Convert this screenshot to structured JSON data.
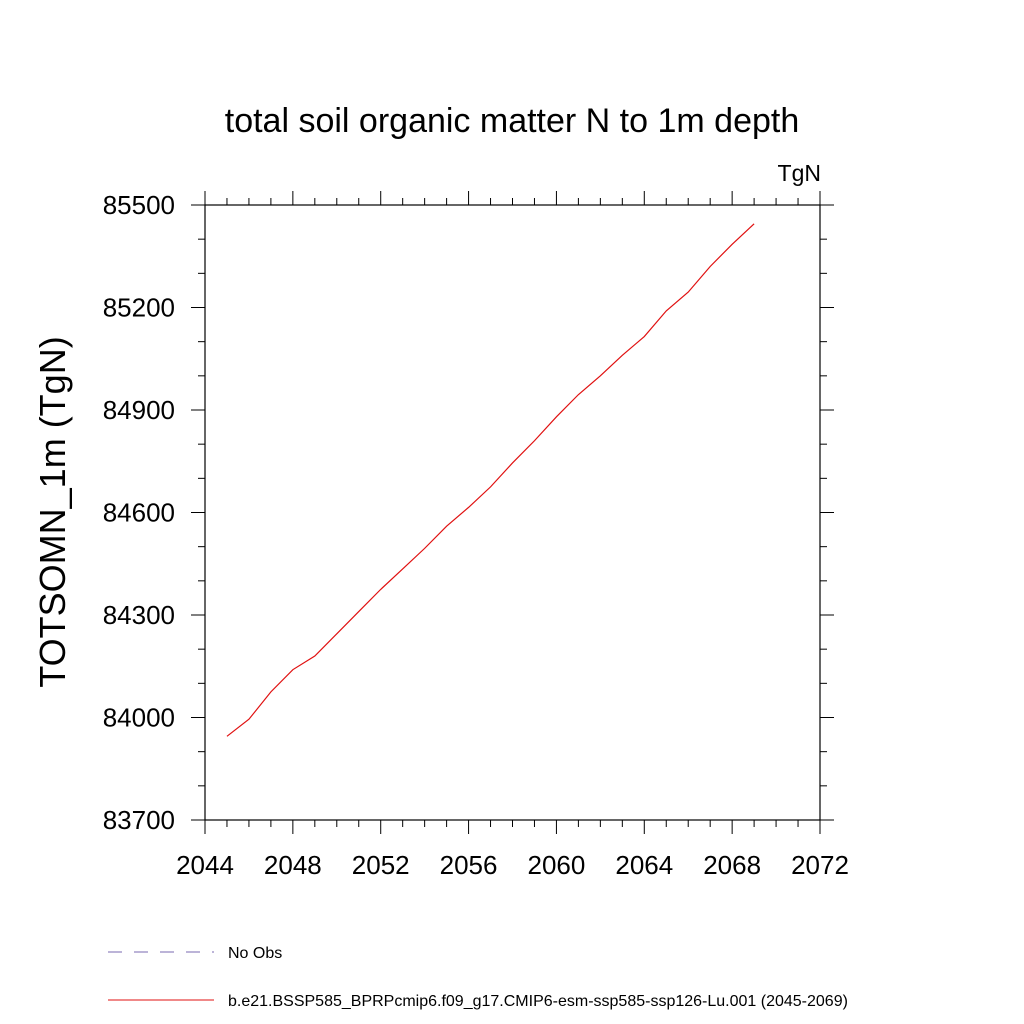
{
  "chart_data": {
    "type": "line",
    "title": "total soil organic matter N to 1m depth",
    "units": "TgN",
    "ylabel": "TOTSOMN_1m  (TgN)",
    "xlabel": "",
    "xlim": [
      2044,
      2072
    ],
    "ylim": [
      83700,
      85500
    ],
    "x_ticks": [
      2044,
      2048,
      2052,
      2056,
      2060,
      2064,
      2068,
      2072
    ],
    "y_ticks": [
      83700,
      84000,
      84300,
      84600,
      84900,
      85200,
      85500
    ],
    "x_minor_step": 1,
    "y_minor_step": 100,
    "grid": false,
    "legend_position": "bottom",
    "series": [
      {
        "name": "b.e21.BSSP585_BPRPcmip6.f09_g17.CMIP6-esm-ssp585-ssp126-Lu.001 (2045-2069)",
        "color": "#e01010",
        "dash": "solid",
        "x": [
          2045,
          2046,
          2047,
          2048,
          2049,
          2050,
          2051,
          2052,
          2053,
          2054,
          2055,
          2056,
          2057,
          2058,
          2059,
          2060,
          2061,
          2062,
          2063,
          2064,
          2065,
          2066,
          2067,
          2068,
          2069
        ],
        "y": [
          83945,
          83995,
          84075,
          84140,
          84180,
          84245,
          84310,
          84375,
          84435,
          84495,
          84560,
          84615,
          84675,
          84745,
          84810,
          84880,
          84945,
          85000,
          85060,
          85115,
          85190,
          85245,
          85320,
          85385,
          85445
        ]
      }
    ],
    "legend": [
      {
        "label": "No Obs",
        "color": "#7a68b0",
        "dash": "dashed"
      },
      {
        "label": "b.e21.BSSP585_BPRPcmip6.f09_g17.CMIP6-esm-ssp585-ssp126-Lu.001 (2045-2069)",
        "color": "#e01010",
        "dash": "solid"
      }
    ]
  }
}
